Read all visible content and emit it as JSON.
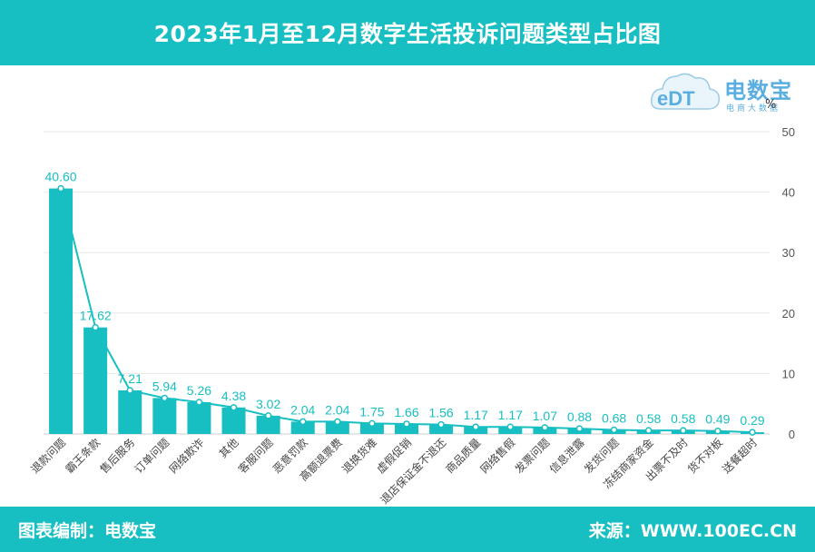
{
  "header": {
    "title": "2023年1月至12月数字生活投诉问题类型占比图"
  },
  "logo": {
    "brand": "电数宝",
    "sub": "电商大数据",
    "mark": "eDT",
    "icon": "cloud-logo-icon"
  },
  "footer": {
    "left": "图表编制：电数宝",
    "right": "来源：WWW.100EC.CN"
  },
  "colors": {
    "accent": "#17bfc2",
    "bar": "#17bfc2",
    "line": "#17bfc2",
    "grid": "#e8e8e8"
  },
  "chart_data": {
    "type": "bar",
    "unit": "%",
    "categories": [
      "退款问题",
      "霸王条款",
      "售后服务",
      "订单问题",
      "网络欺诈",
      "其他",
      "客服问题",
      "恶意罚款",
      "高额退票费",
      "退换货难",
      "虚假促销",
      "退店保证金不退还",
      "商品质量",
      "网络售假",
      "发票问题",
      "信息泄露",
      "发货问题",
      "冻结商家资金",
      "出票不及时",
      "货不对板",
      "送餐超时"
    ],
    "values": [
      40.6,
      17.62,
      7.21,
      5.94,
      5.26,
      4.38,
      3.02,
      2.04,
      2.04,
      1.75,
      1.66,
      1.56,
      1.17,
      1.17,
      1.07,
      0.88,
      0.68,
      0.58,
      0.58,
      0.49,
      0.29
    ],
    "value_labels": [
      "40.60",
      "17.62",
      "7.21",
      "5.94",
      "5.26",
      "4.38",
      "3.02",
      "2.04",
      "2.04",
      "1.75",
      "1.66",
      "1.56",
      "1.17",
      "1.17",
      "1.07",
      "0.88",
      "0.68",
      "0.58",
      "0.58",
      "0.49",
      "0.29"
    ],
    "line_overlay": true,
    "yaxis_position": "right",
    "ylim": [
      0,
      50
    ],
    "yticks": [
      0,
      10,
      20,
      30,
      40,
      50
    ],
    "grid": true
  }
}
